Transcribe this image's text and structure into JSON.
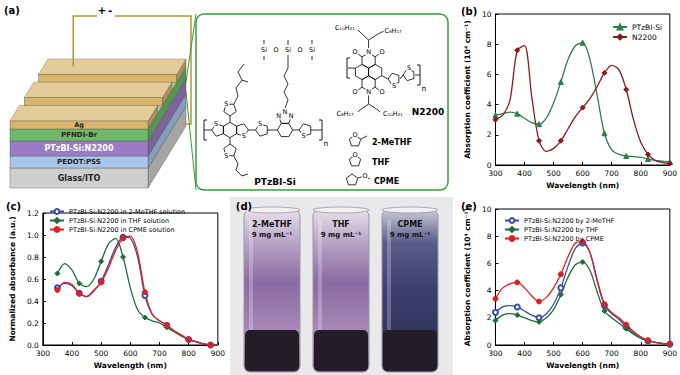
{
  "diagram": {
    "label": "(a)",
    "terminals": [
      "+",
      "-"
    ],
    "layers": [
      "Ag",
      "PFNDI-Br",
      "PTzBI-Si:N2200",
      "PEDOT:PSS",
      "Glass/ITO"
    ],
    "structures": [
      {
        "name": "PTzBI-Si",
        "atoms": [
          "S",
          "S",
          "S",
          "S",
          "S",
          "S",
          "N",
          "N",
          "N",
          "Si",
          "O",
          "Si",
          "O",
          "Si",
          "n"
        ]
      },
      {
        "name": "N2200",
        "atoms": [
          "N",
          "N",
          "O",
          "O",
          "O",
          "O",
          "S",
          "S",
          "C₈H₁₇",
          "C₁₀H₂₁",
          "C₈H₁₇",
          "C₁₀H₂₁",
          "n"
        ]
      }
    ],
    "solvents": [
      {
        "name": "2-MeTHF",
        "atoms": [
          "O"
        ]
      },
      {
        "name": "THF",
        "atoms": [
          "O"
        ]
      },
      {
        "name": "CPME",
        "atoms": [
          "O"
        ]
      }
    ]
  },
  "photo": {
    "label": "(d)",
    "vials": [
      {
        "solvent": "2-MeTHF",
        "concentration": "9 mg mL⁻¹"
      },
      {
        "solvent": "THF",
        "concentration": "9 mg mL⁻¹"
      },
      {
        "solvent": "CPME",
        "concentration": "9 mg mL⁻¹"
      }
    ]
  },
  "chart_data": [
    {
      "type": "line",
      "title": "(b)",
      "xlabel": "Wavelength (nm)",
      "ylabel": "Absorption coefficient (10⁴ cm⁻¹)",
      "x": [
        300,
        325,
        350,
        375,
        400,
        425,
        450,
        475,
        500,
        525,
        550,
        575,
        600,
        625,
        650,
        675,
        700,
        725,
        750,
        775,
        800,
        825,
        850,
        875,
        900
      ],
      "series": [
        {
          "name": "PTzBI-Si",
          "color": "#2e7d4f",
          "marker": "triangle",
          "values": [
            3.3,
            3.4,
            3.5,
            3.4,
            3.1,
            2.8,
            2.7,
            3.1,
            4.1,
            5.5,
            7.0,
            7.9,
            8.1,
            7.0,
            4.6,
            2.1,
            1.0,
            0.7,
            0.6,
            0.55,
            0.5,
            0.4,
            0.3,
            0.25,
            0.2
          ]
        },
        {
          "name": "N2200",
          "color": "#8b1a1a",
          "marker": "diamond",
          "values": [
            3.0,
            3.3,
            4.3,
            7.6,
            7.9,
            4.5,
            1.6,
            0.9,
            1.1,
            1.6,
            2.4,
            3.2,
            3.8,
            4.4,
            5.2,
            6.1,
            6.6,
            6.3,
            5.0,
            3.0,
            1.5,
            0.7,
            0.3,
            0.15,
            0.1
          ]
        }
      ],
      "xlim": [
        300,
        900
      ],
      "xticks": [
        300,
        400,
        500,
        600,
        700,
        800,
        900
      ],
      "ylim": [
        0,
        10
      ],
      "yticks": [
        0,
        2,
        4,
        6,
        8,
        10
      ],
      "grid": false,
      "legend": "upper right"
    },
    {
      "type": "line",
      "title": "(c)",
      "xlabel": "Wavelength (nm)",
      "ylabel": "Normalized absorbance (a.u.)",
      "x": [
        350,
        375,
        400,
        425,
        450,
        475,
        500,
        525,
        550,
        575,
        600,
        625,
        650,
        675,
        700,
        725,
        750,
        775,
        800,
        825,
        850,
        875,
        900
      ],
      "series": [
        {
          "name": "PTzBI-Si:N2200 in 2-MeTHF solution",
          "color": "#3b4ba8",
          "marker": "open circle",
          "values": [
            0.52,
            0.56,
            0.54,
            0.47,
            0.44,
            0.49,
            0.58,
            0.73,
            0.89,
            0.98,
            0.97,
            0.8,
            0.45,
            0.28,
            0.22,
            0.18,
            0.13,
            0.09,
            0.05,
            0.03,
            0.01,
            0.0,
            0.0
          ]
        },
        {
          "name": "PTzBI-Si:N2200 in THF solution",
          "color": "#1f6b3a",
          "marker": "diamond",
          "values": [
            0.65,
            0.74,
            0.68,
            0.56,
            0.53,
            0.6,
            0.76,
            0.92,
            0.97,
            0.8,
            0.52,
            0.32,
            0.25,
            0.22,
            0.2,
            0.16,
            0.12,
            0.08,
            0.05,
            0.03,
            0.01,
            0.0,
            0.0
          ]
        },
        {
          "name": "PTzBI-Si:N2200 in CPME solution",
          "color": "#e02020",
          "marker": "circle",
          "values": [
            0.5,
            0.57,
            0.55,
            0.47,
            0.44,
            0.5,
            0.57,
            0.7,
            0.86,
            0.97,
            0.99,
            0.84,
            0.48,
            0.28,
            0.22,
            0.18,
            0.13,
            0.09,
            0.05,
            0.03,
            0.01,
            0.0,
            0.0
          ]
        }
      ],
      "xlim": [
        300,
        900
      ],
      "xticks": [
        300,
        400,
        500,
        600,
        700,
        800,
        900
      ],
      "ylim": [
        0,
        1.2
      ],
      "yticks": [
        {
          "value": 0,
          "label": "0.0"
        },
        0.2,
        0.4,
        0.6,
        0.8,
        {
          "value": 1,
          "label": "1.0"
        },
        1.2
      ],
      "grid": false,
      "legend": "upper left"
    },
    {
      "type": "line",
      "title": "(e)",
      "xlabel": "Wavelength (nm)",
      "ylabel": "Absorption coefficient (10⁴ cm⁻¹)",
      "x": [
        300,
        325,
        350,
        375,
        400,
        425,
        450,
        475,
        500,
        525,
        550,
        575,
        600,
        625,
        650,
        675,
        700,
        725,
        750,
        775,
        800,
        825,
        850,
        875,
        900
      ],
      "series": [
        {
          "name": "PTzBI-Si:N2200 by 2-MeTHF",
          "color": "#3b4ba8",
          "marker": "open circle",
          "values": [
            2.4,
            2.8,
            2.9,
            2.8,
            2.5,
            2.2,
            2.0,
            2.3,
            3.0,
            4.2,
            5.8,
            7.1,
            7.5,
            6.8,
            4.7,
            2.9,
            2.3,
            1.9,
            1.3,
            0.9,
            0.5,
            0.3,
            0.2,
            0.1,
            0.05
          ]
        },
        {
          "name": "PTzBI-Si:N2200 by THF",
          "color": "#1f6b3a",
          "marker": "diamond",
          "values": [
            1.8,
            2.2,
            2.3,
            2.2,
            2.0,
            1.8,
            1.7,
            2.0,
            2.6,
            3.7,
            5.0,
            5.9,
            6.1,
            5.5,
            3.9,
            2.5,
            2.0,
            1.6,
            1.2,
            0.8,
            0.5,
            0.3,
            0.2,
            0.1,
            0.05
          ]
        },
        {
          "name": "PTzBI-Si:N2200 by CPME",
          "color": "#e02020",
          "marker": "circle",
          "values": [
            3.4,
            4.2,
            4.5,
            4.6,
            4.2,
            3.6,
            3.2,
            3.5,
            4.2,
            5.2,
            6.5,
            7.5,
            7.6,
            6.8,
            4.8,
            3.0,
            2.4,
            2.0,
            1.5,
            1.0,
            0.6,
            0.35,
            0.2,
            0.12,
            0.1
          ]
        }
      ],
      "xlim": [
        300,
        900
      ],
      "xticks": [
        300,
        400,
        500,
        600,
        700,
        800,
        900
      ],
      "ylim": [
        0,
        10
      ],
      "yticks": [
        0,
        2,
        4,
        6,
        8,
        10
      ],
      "grid": false,
      "legend": "upper left"
    }
  ]
}
